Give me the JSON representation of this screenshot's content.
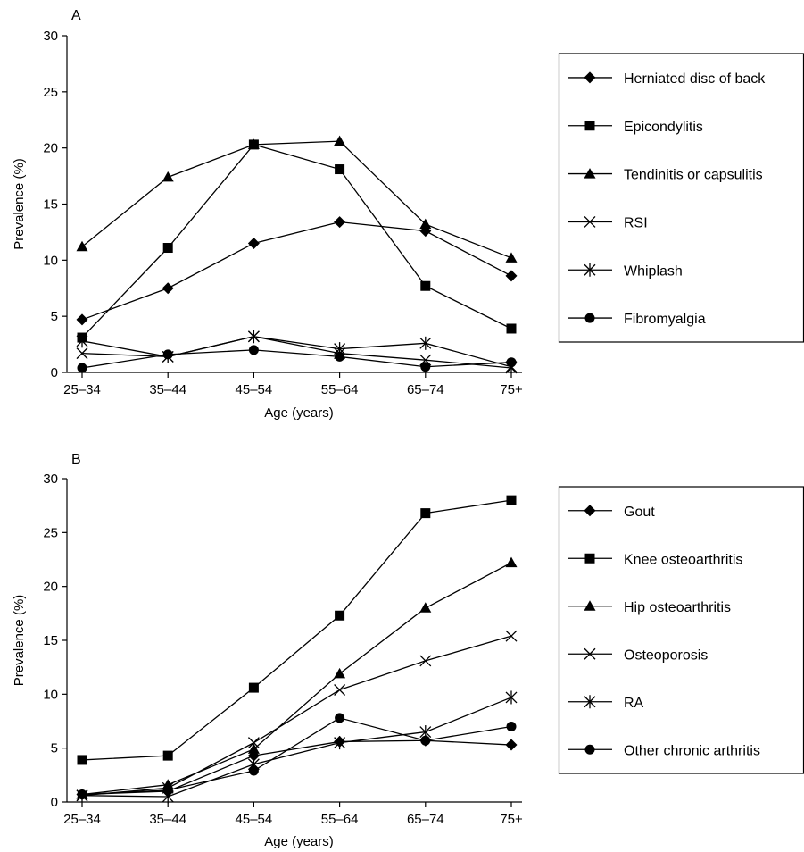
{
  "chart_data": [
    {
      "type": "line",
      "panel_label": "A",
      "xlabel": "Age (years)",
      "ylabel": "Prevalence (%)",
      "categories": [
        "25–34",
        "35–44",
        "45–54",
        "55–64",
        "65–74",
        "75+"
      ],
      "ylim": [
        0,
        30
      ],
      "yticks": [
        0,
        5,
        10,
        15,
        20,
        25,
        30
      ],
      "grid": false,
      "legend_position": "right",
      "series": [
        {
          "name": "Herniated disc of back",
          "marker": "diamond",
          "values": [
            4.7,
            7.5,
            11.5,
            13.4,
            12.6,
            8.6
          ]
        },
        {
          "name": "Epicondylitis",
          "marker": "square",
          "values": [
            3.1,
            11.1,
            20.3,
            18.1,
            7.7,
            3.9
          ]
        },
        {
          "name": "Tendinitis or capsulitis",
          "marker": "triangle",
          "values": [
            11.2,
            17.4,
            20.3,
            20.6,
            13.2,
            10.2
          ]
        },
        {
          "name": "RSI",
          "marker": "x",
          "values": [
            1.7,
            1.4,
            3.2,
            1.7,
            1.1,
            0.4
          ]
        },
        {
          "name": "Whiplash",
          "marker": "asterisk",
          "values": [
            2.8,
            1.4,
            3.2,
            2.1,
            2.6,
            0.5
          ]
        },
        {
          "name": "Fibromyalgia",
          "marker": "circle",
          "values": [
            0.4,
            1.6,
            2.0,
            1.4,
            0.5,
            0.9
          ]
        }
      ]
    },
    {
      "type": "line",
      "panel_label": "B",
      "xlabel": "Age (years)",
      "ylabel": "Prevalence (%)",
      "categories": [
        "25–34",
        "35–44",
        "45–54",
        "55–64",
        "65–74",
        "75+"
      ],
      "ylim": [
        0,
        30
      ],
      "yticks": [
        0,
        5,
        10,
        15,
        20,
        25,
        30
      ],
      "grid": false,
      "legend_position": "right",
      "series": [
        {
          "name": "Gout",
          "marker": "diamond",
          "values": [
            0.7,
            1.0,
            4.3,
            5.6,
            5.7,
            5.3
          ]
        },
        {
          "name": "Knee osteoarthritis",
          "marker": "square",
          "values": [
            3.9,
            4.3,
            10.6,
            17.3,
            26.8,
            28.0
          ]
        },
        {
          "name": "Hip osteoarthritis",
          "marker": "triangle",
          "values": [
            0.7,
            1.6,
            4.9,
            11.9,
            18.0,
            22.2
          ]
        },
        {
          "name": "Osteoporosis",
          "marker": "x",
          "values": [
            0.6,
            1.3,
            5.5,
            10.4,
            13.1,
            15.4
          ]
        },
        {
          "name": "RA",
          "marker": "asterisk",
          "values": [
            0.6,
            0.5,
            3.5,
            5.5,
            6.5,
            9.7
          ]
        },
        {
          "name": "Other chronic arthritis",
          "marker": "circle",
          "values": [
            0.7,
            1.1,
            2.9,
            7.8,
            5.7,
            7.0
          ]
        }
      ]
    }
  ]
}
